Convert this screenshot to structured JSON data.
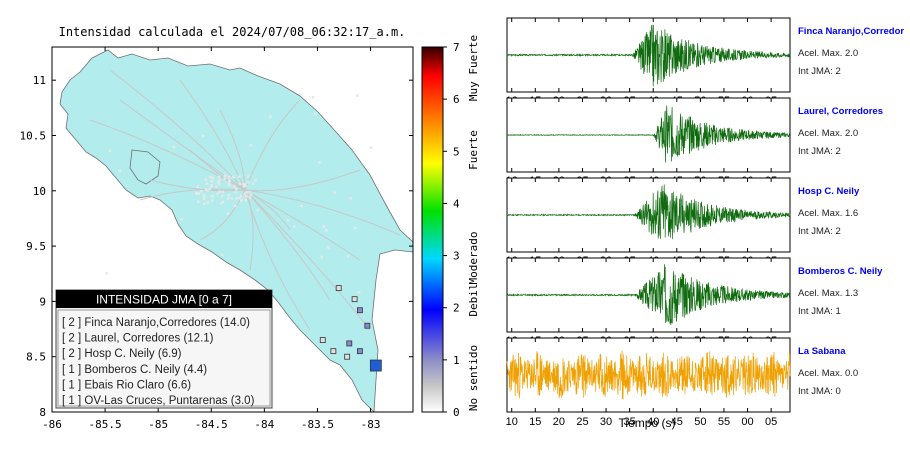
{
  "map": {
    "title": "Intensidad calculada el 2024/07/08_06:32:17_a.m.",
    "x_ticks": [
      "-86",
      "-85.5",
      "-85",
      "-84.5",
      "-84",
      "-83.5",
      "-83"
    ],
    "y_ticks": [
      "11",
      "10.5",
      "10",
      "9.5",
      "9",
      "8.5",
      "8"
    ],
    "land_color": "#b2ecec",
    "station_markers": [
      {
        "lon": -82.95,
        "lat": 8.42,
        "intensity": 2,
        "color": "#1f5fd6"
      },
      {
        "lon": -83.03,
        "lat": 8.78,
        "intensity": 1,
        "color": "#8a8ad0"
      },
      {
        "lon": -83.1,
        "lat": 8.92,
        "intensity": 1,
        "color": "#8a8ad0"
      },
      {
        "lon": -83.1,
        "lat": 8.55,
        "intensity": 1,
        "color": "#8a8ad0"
      },
      {
        "lon": -83.2,
        "lat": 8.62,
        "intensity": 1,
        "color": "#8a8ad0"
      },
      {
        "lon": -83.35,
        "lat": 8.55,
        "intensity": 0,
        "color": "#e0e0e0"
      },
      {
        "lon": -83.45,
        "lat": 8.65,
        "intensity": 0,
        "color": "#e0e0e0"
      },
      {
        "lon": -83.15,
        "lat": 9.02,
        "intensity": 0,
        "color": "#e0e0e0"
      },
      {
        "lon": -83.3,
        "lat": 9.12,
        "intensity": 0,
        "color": "#e0e0e0"
      },
      {
        "lon": -83.22,
        "lat": 8.5,
        "intensity": 0,
        "color": "#e0e0e0"
      }
    ]
  },
  "legend": {
    "title": "INTENSIDAD JMA [0 a 7]",
    "items": [
      "[ 2 ] Finca Naranjo,Corredores (14.0)",
      "[ 2 ] Laurel, Corredores (12.1)",
      "[ 2 ] Hosp C. Neily (6.9)",
      "[ 1 ] Bomberos C. Neily (4.4)",
      "[ 1 ] Ebais Rio Claro (6.6)",
      "[ 1 ] OV-Las Cruces, Puntarenas (3.0)"
    ]
  },
  "colorbar": {
    "ticks": [
      "7",
      "6",
      "5",
      "4",
      "3",
      "2",
      "1",
      "0"
    ],
    "labels": [
      "Muy Fuerte",
      "Fuerte",
      "Moderado",
      "Debil",
      "No sentido"
    ]
  },
  "waveforms": {
    "x_ticks": [
      "10",
      "15",
      "20",
      "25",
      "30",
      "35",
      "40",
      "45",
      "50",
      "55",
      "00",
      "05"
    ],
    "xlabel": "Tiempo (s)",
    "traces": [
      {
        "name": "Finca Naranjo,Corredor",
        "acel": "Acel. Max. 2.0",
        "int": "Int JMA: 2",
        "color": "#0e6b0e",
        "onset": 35.5,
        "peak": 40,
        "amp": 0.95,
        "noise": 0.02,
        "seed": 3
      },
      {
        "name": "Laurel, Corredores",
        "acel": "Acel. Max. 2.0",
        "int": "Int JMA: 2",
        "color": "#0e6b0e",
        "onset": 40,
        "peak": 43,
        "amp": 0.9,
        "noise": 0.01,
        "seed": 7
      },
      {
        "name": "Hosp C. Neily",
        "acel": "Acel. Max. 1.6",
        "int": "Int JMA: 2",
        "color": "#0e6b0e",
        "onset": 36,
        "peak": 42,
        "amp": 0.95,
        "noise": 0.015,
        "seed": 11
      },
      {
        "name": "Bomberos C. Neily",
        "acel": "Acel. Max. 1.3",
        "int": "Int JMA: 1",
        "color": "#0e6b0e",
        "onset": 36,
        "peak": 43,
        "amp": 0.95,
        "noise": 0.02,
        "seed": 17
      },
      {
        "name": "La Sabana",
        "acel": "Acel. Max. 0.0",
        "int": "Int JMA: 0",
        "color": "#f0a000",
        "onset": 10,
        "peak": 40,
        "amp": 0.6,
        "noise": 0.45,
        "seed": 23
      }
    ]
  }
}
